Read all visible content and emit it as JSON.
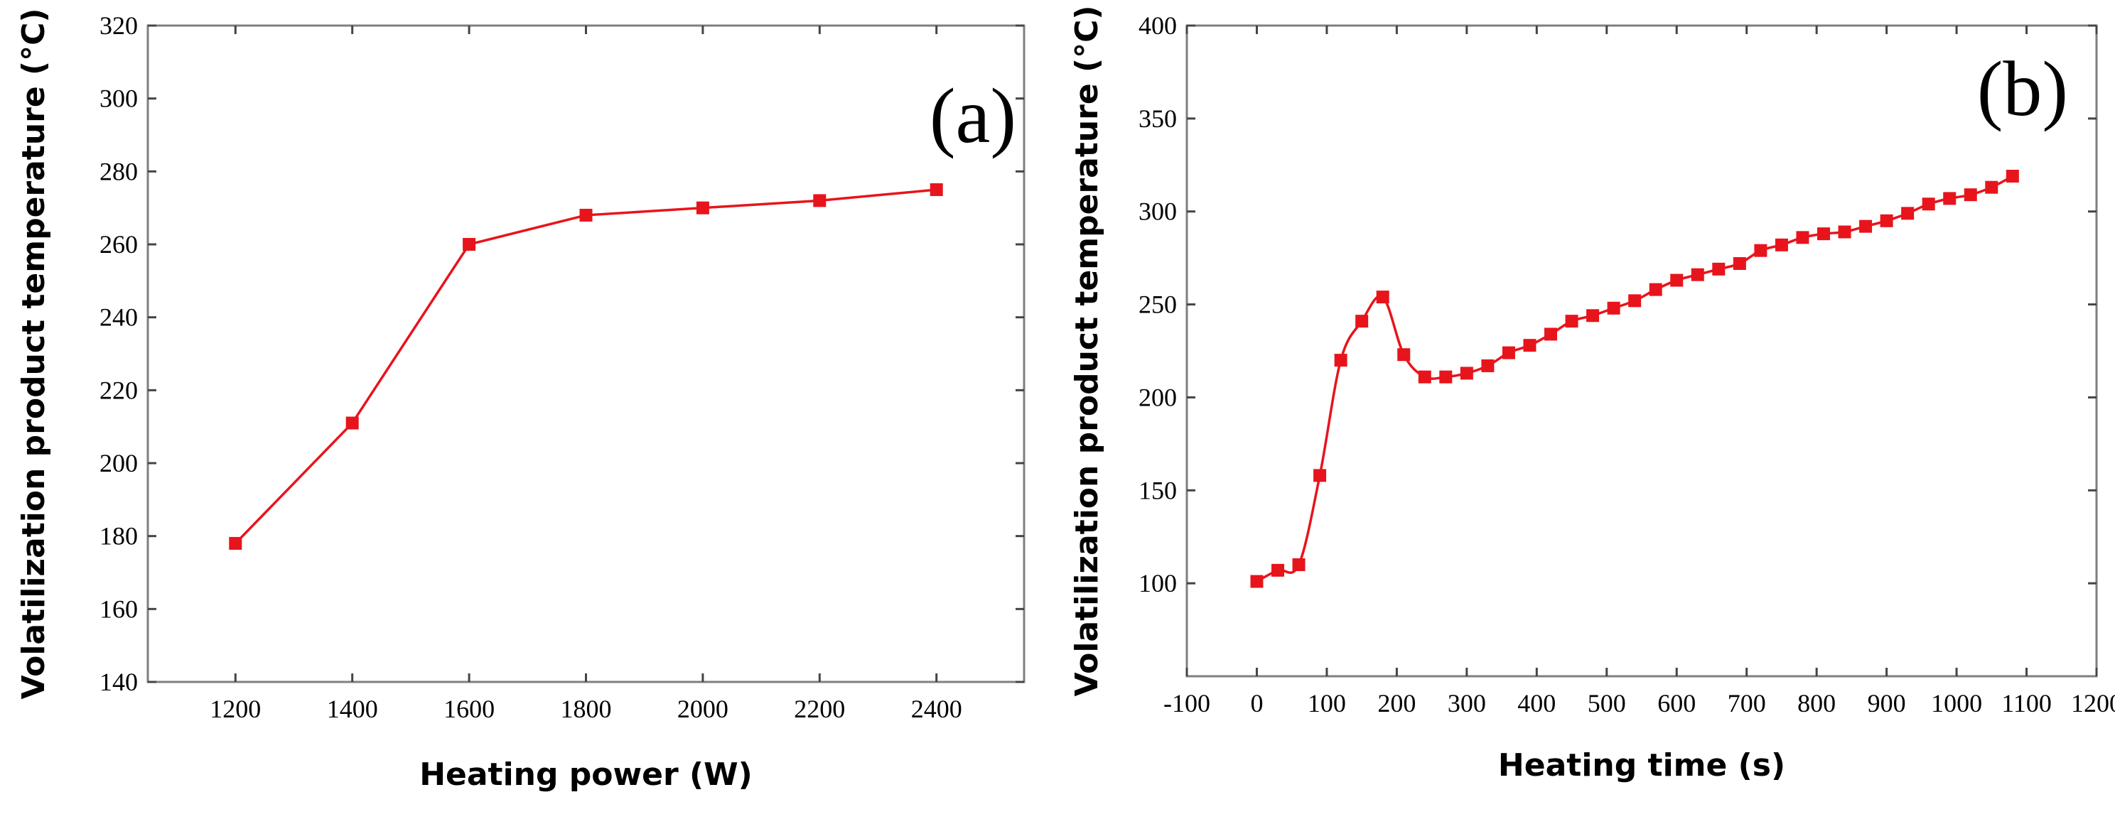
{
  "chart_data": [
    {
      "type": "line",
      "panel_label": "(a)",
      "xlabel": "Heating power (W)",
      "ylabel": "Volatilization product temperature (°C)",
      "xlim": [
        1050,
        2550
      ],
      "ylim": [
        140,
        320
      ],
      "xticks": [
        1200,
        1400,
        1600,
        1800,
        2000,
        2200,
        2400
      ],
      "yticks": [
        140,
        160,
        180,
        200,
        220,
        240,
        260,
        280,
        300,
        320
      ],
      "grid": false,
      "marker": "square",
      "color": "#e8141c",
      "series": [
        {
          "x": [
            1200,
            1400,
            1600,
            1800,
            2000,
            2200,
            2400
          ],
          "y": [
            178,
            211,
            260,
            268,
            270,
            272,
            275
          ]
        }
      ]
    },
    {
      "type": "line",
      "panel_label": "(b)",
      "xlabel": "Heating time (s)",
      "ylabel": "Volatilization product temperature (°C)",
      "xlim": [
        -100,
        1200
      ],
      "ylim": [
        50,
        400
      ],
      "xticks": [
        -100,
        0,
        100,
        200,
        300,
        400,
        500,
        600,
        700,
        800,
        900,
        1000,
        1100,
        1200
      ],
      "yticks": [
        100,
        150,
        200,
        250,
        300,
        350,
        400
      ],
      "grid": false,
      "marker": "square",
      "color": "#e8141c",
      "smooth": true,
      "series": [
        {
          "x": [
            0,
            30,
            60,
            90,
            120,
            150,
            180,
            210,
            240,
            270,
            300,
            330,
            360,
            390,
            420,
            450,
            480,
            510,
            540,
            570,
            600,
            630,
            660,
            690,
            720,
            750,
            780,
            810,
            840,
            870,
            900,
            930,
            960,
            990,
            1020,
            1050,
            1080
          ],
          "y": [
            101,
            107,
            110,
            158,
            220,
            241,
            254,
            223,
            211,
            211,
            213,
            217,
            224,
            228,
            234,
            241,
            244,
            248,
            252,
            258,
            263,
            266,
            269,
            272,
            279,
            282,
            286,
            288,
            289,
            292,
            295,
            299,
            304,
            307,
            309,
            313,
            319
          ]
        }
      ]
    }
  ]
}
